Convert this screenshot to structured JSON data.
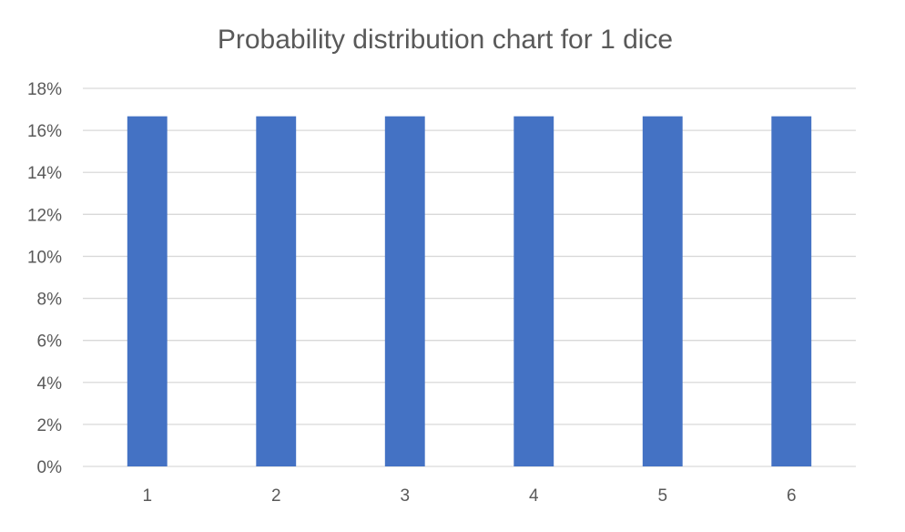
{
  "chart_data": {
    "type": "bar",
    "title": "Probability distribution chart for 1 dice",
    "categories": [
      "1",
      "2",
      "3",
      "4",
      "5",
      "6"
    ],
    "values": [
      16.67,
      16.67,
      16.67,
      16.67,
      16.67,
      16.67
    ],
    "value_unit": "%",
    "xlabel": "",
    "ylabel": "",
    "ylim": [
      0,
      18
    ],
    "y_ticks": [
      0,
      2,
      4,
      6,
      8,
      10,
      12,
      14,
      16,
      18
    ],
    "y_tick_labels": [
      "0%",
      "2%",
      "4%",
      "6%",
      "8%",
      "10%",
      "12%",
      "14%",
      "16%",
      "18%"
    ],
    "grid": "horizontal",
    "legend": "none",
    "colors": {
      "bar": "#4472C4",
      "grid": "#D9D9D9",
      "text": "#595959",
      "background": "#FFFFFF"
    }
  }
}
